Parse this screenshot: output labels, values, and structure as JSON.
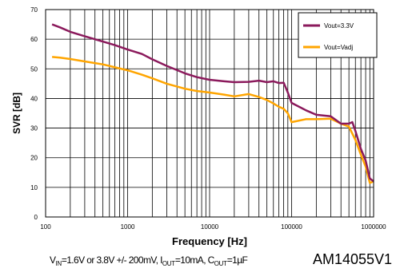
{
  "chart_data": {
    "type": "line",
    "title": "",
    "xlabel": "Frequency [Hz]",
    "ylabel": "SVR [dB]",
    "xscale": "log",
    "xlim": [
      100,
      1000000
    ],
    "ylim": [
      0,
      70
    ],
    "grid": true,
    "legend_position": "top-right",
    "x_tick_labels": [
      "100",
      "1000",
      "10000",
      "100000",
      "1000000"
    ],
    "y_tick_labels": [
      "0",
      "10",
      "20",
      "30",
      "40",
      "50",
      "60",
      "70"
    ],
    "series": [
      {
        "name": "Vout=3.3V",
        "color": "#8b1a5c",
        "x": [
          120,
          150,
          200,
          300,
          500,
          700,
          1000,
          1500,
          2000,
          3000,
          5000,
          7000,
          10000,
          15000,
          20000,
          30000,
          40000,
          50000,
          60000,
          70000,
          80000,
          90000,
          100000,
          150000,
          200000,
          300000,
          400000,
          500000,
          550000,
          600000,
          700000,
          800000,
          900000,
          1000000
        ],
        "values": [
          65,
          64,
          62.5,
          61,
          59.2,
          58,
          56.5,
          55,
          53.2,
          51,
          48.5,
          47.2,
          46.3,
          45.8,
          45.5,
          45.6,
          46,
          45.5,
          45.8,
          45.2,
          45.3,
          42,
          38.5,
          36,
          34.5,
          34,
          31.5,
          31.5,
          32,
          29,
          23,
          19,
          13,
          12
        ]
      },
      {
        "name": "Vout=Vadj",
        "color": "#ffa500",
        "x": [
          120,
          150,
          200,
          300,
          500,
          700,
          1000,
          1500,
          2000,
          3000,
          5000,
          7000,
          10000,
          15000,
          20000,
          30000,
          40000,
          50000,
          60000,
          70000,
          80000,
          90000,
          100000,
          150000,
          200000,
          300000,
          400000,
          500000,
          600000,
          700000,
          800000,
          900000,
          1000000
        ],
        "values": [
          54,
          53.8,
          53.3,
          52.5,
          51.5,
          50.5,
          49.5,
          48,
          46.8,
          45,
          43.3,
          42.5,
          42,
          41.3,
          40.7,
          41.5,
          40.5,
          39.5,
          38.3,
          37.2,
          36.5,
          35,
          32,
          33,
          33,
          33.2,
          31.5,
          30.5,
          26,
          21,
          17,
          11.5,
          12
        ]
      }
    ]
  },
  "conditions": {
    "vin_prefix": "V",
    "vin_sub": "IN",
    "vin_text": "=1.6V or 3.8V +/- 200mV, I",
    "iout_sub": "OUT",
    "iout_text": "=10mA, C",
    "cout_sub": "OUT",
    "cout_text": "=1µF"
  },
  "figure_id": "AM14055V1"
}
